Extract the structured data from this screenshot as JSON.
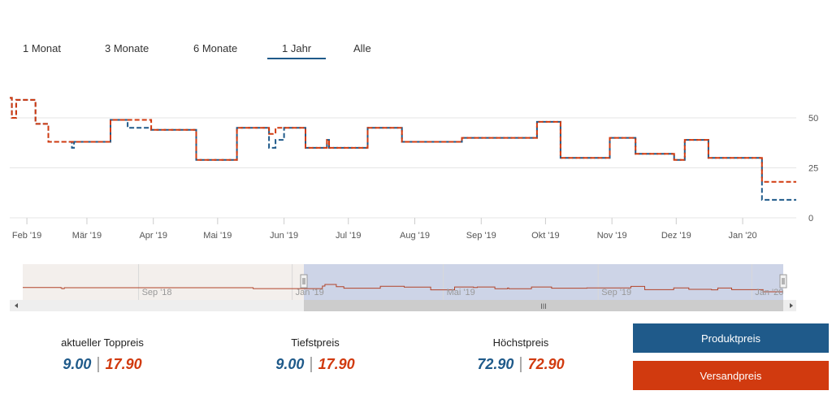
{
  "tabs": [
    {
      "label": "1 Monat",
      "active": false
    },
    {
      "label": "3 Monate",
      "active": false
    },
    {
      "label": "6 Monate",
      "active": false
    },
    {
      "label": "1 Jahr",
      "active": true
    },
    {
      "label": "Alle",
      "active": false
    }
  ],
  "colors": {
    "produktpreis": "#1f5a8a",
    "versandpreis": "#d13a0f",
    "grid": "#e6e6e6",
    "navigator_mask": "#c5cfe6"
  },
  "chart_data": {
    "type": "line",
    "step": true,
    "dashed": true,
    "x_tick_labels": [
      "Feb '19",
      "Mär '19",
      "Apr '19",
      "Mai '19",
      "Jun '19",
      "Jul '19",
      "Aug '19",
      "Sep '19",
      "Okt '19",
      "Nov '19",
      "Dez '19",
      "Jan '20"
    ],
    "y_ticks": [
      0,
      25,
      50
    ],
    "ylim": [
      0,
      75
    ],
    "y_axis_position": "right",
    "grid": true,
    "series": [
      {
        "name": "Produktpreis",
        "color": "#1f5a8a",
        "points": [
          [
            "2019-01-24",
            60
          ],
          [
            "2019-01-25",
            50
          ],
          [
            "2019-01-27",
            59
          ],
          [
            "2019-02-05",
            47
          ],
          [
            "2019-02-11",
            38
          ],
          [
            "2019-02-22",
            35
          ],
          [
            "2019-02-23",
            38
          ],
          [
            "2019-03-12",
            49
          ],
          [
            "2019-03-20",
            45
          ],
          [
            "2019-03-31",
            44
          ],
          [
            "2019-04-21",
            29
          ],
          [
            "2019-05-10",
            45
          ],
          [
            "2019-05-25",
            35
          ],
          [
            "2019-05-28",
            39
          ],
          [
            "2019-06-01",
            45
          ],
          [
            "2019-06-11",
            35
          ],
          [
            "2019-06-21",
            39
          ],
          [
            "2019-06-22",
            35
          ],
          [
            "2019-07-10",
            45
          ],
          [
            "2019-07-26",
            38
          ],
          [
            "2019-08-23",
            40
          ],
          [
            "2019-09-27",
            48
          ],
          [
            "2019-10-08",
            30
          ],
          [
            "2019-10-31",
            40
          ],
          [
            "2019-11-12",
            32
          ],
          [
            "2019-11-30",
            29
          ],
          [
            "2019-12-05",
            39
          ],
          [
            "2019-12-16",
            30
          ],
          [
            "2020-01-10",
            9
          ],
          [
            "2020-01-26",
            9
          ]
        ]
      },
      {
        "name": "Versandpreis",
        "color": "#d13a0f",
        "points": [
          [
            "2019-01-24",
            60
          ],
          [
            "2019-01-25",
            50
          ],
          [
            "2019-01-27",
            59
          ],
          [
            "2019-02-05",
            47
          ],
          [
            "2019-02-11",
            38
          ],
          [
            "2019-02-22",
            38
          ],
          [
            "2019-03-12",
            49
          ],
          [
            "2019-03-31",
            44
          ],
          [
            "2019-04-21",
            29
          ],
          [
            "2019-05-10",
            45
          ],
          [
            "2019-05-25",
            42
          ],
          [
            "2019-05-28",
            45
          ],
          [
            "2019-06-11",
            35
          ],
          [
            "2019-06-21",
            39
          ],
          [
            "2019-06-22",
            35
          ],
          [
            "2019-07-10",
            45
          ],
          [
            "2019-07-26",
            38
          ],
          [
            "2019-08-23",
            40
          ],
          [
            "2019-09-27",
            48
          ],
          [
            "2019-10-08",
            30
          ],
          [
            "2019-10-31",
            40
          ],
          [
            "2019-11-12",
            32
          ],
          [
            "2019-11-30",
            29
          ],
          [
            "2019-12-05",
            39
          ],
          [
            "2019-12-16",
            30
          ],
          [
            "2020-01-10",
            18
          ],
          [
            "2020-01-26",
            18
          ]
        ]
      }
    ],
    "navigator": {
      "tick_labels": [
        "Sep '18",
        "Jan '19",
        "Mai '19",
        "Sep '19",
        "Jan '20"
      ],
      "selected_range": [
        "2019-01-24",
        "2020-01-26"
      ]
    }
  },
  "stats": [
    {
      "label": "aktueller Toppreis",
      "produkt": "9.00",
      "versand": "17.90"
    },
    {
      "label": "Tiefstpreis",
      "produkt": "9.00",
      "versand": "17.90"
    },
    {
      "label": "Höchstpreis",
      "produkt": "72.90",
      "versand": "72.90"
    }
  ],
  "legend": {
    "produkt_label": "Produktpreis",
    "versand_label": "Versandpreis"
  },
  "navigator": {
    "scroll_grip": "III"
  }
}
